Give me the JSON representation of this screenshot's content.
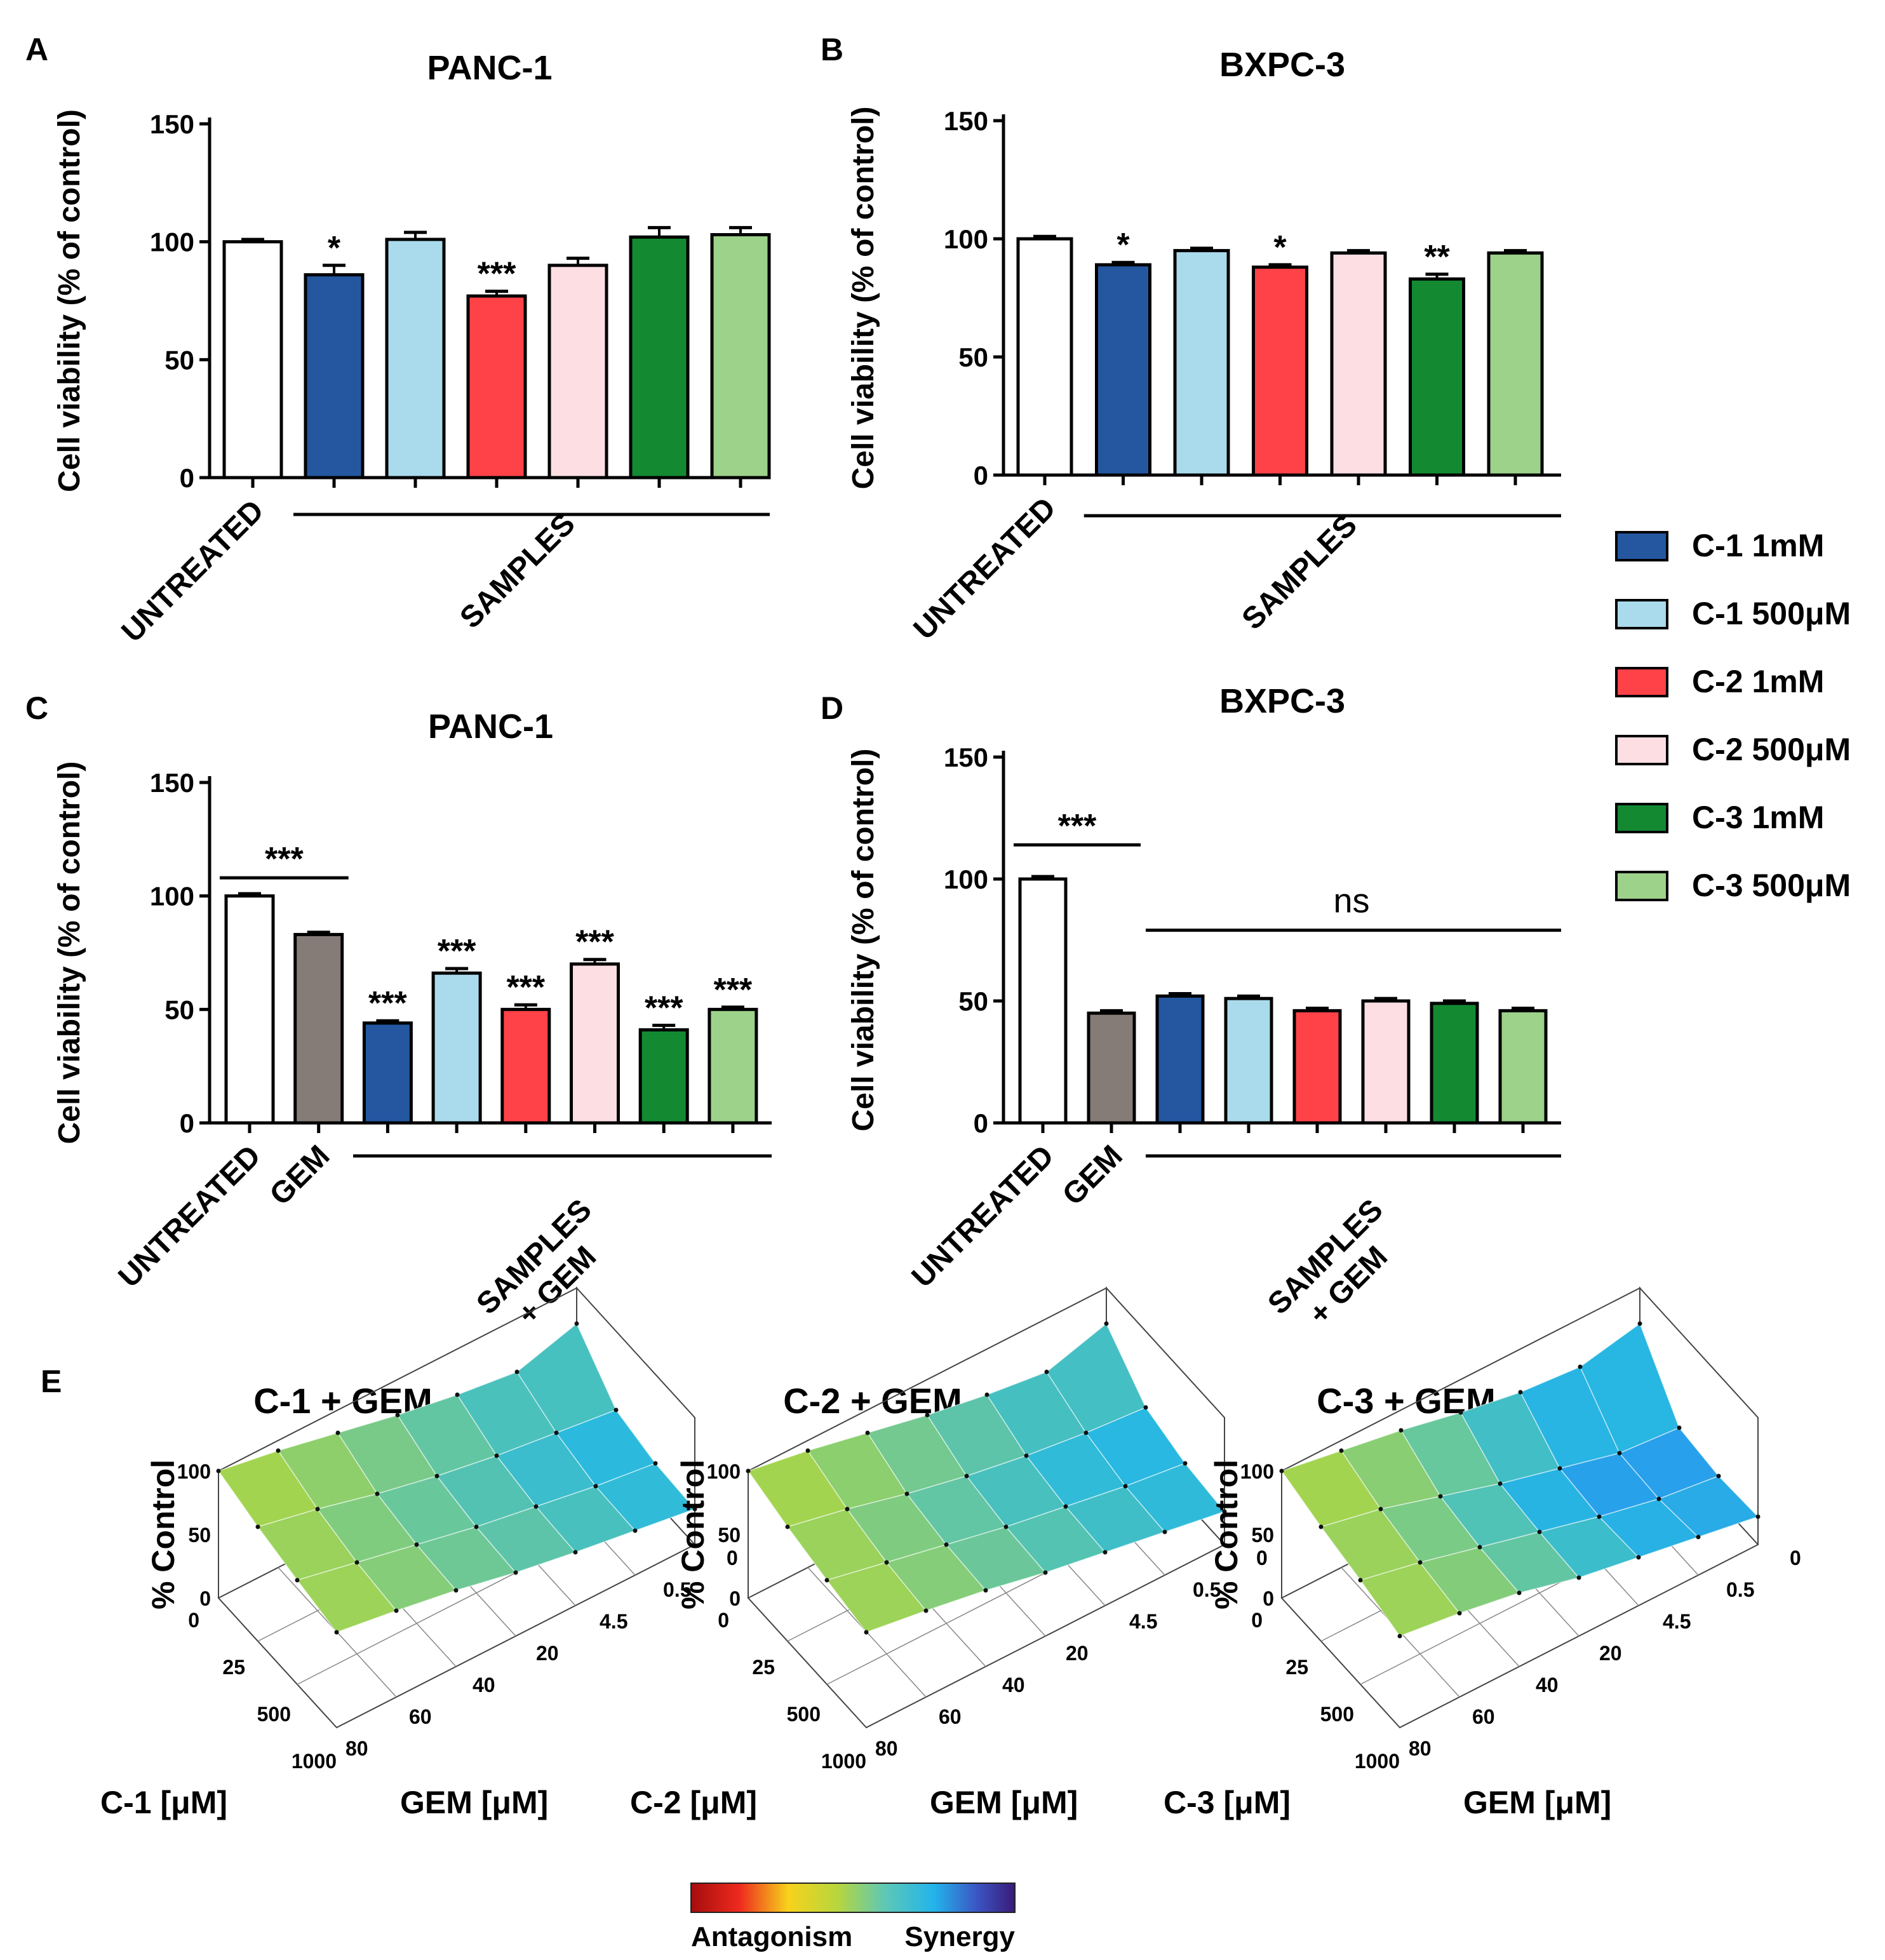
{
  "figure": {
    "legend": [
      {
        "label": "C-1 1mM",
        "color": "#2457a0"
      },
      {
        "label": "C-1 500μM",
        "color": "#aadbec"
      },
      {
        "label": "C-2 1mM",
        "color": "#ff4248"
      },
      {
        "label": "C-2 500μM",
        "color": "#fddfe3"
      },
      {
        "label": "C-3 1mM",
        "color": "#138a32"
      },
      {
        "label": "C-3 500μM",
        "color": "#9dd28a"
      }
    ],
    "colorbar": {
      "left_label": "Antagonism",
      "right_label": "Synergy"
    }
  },
  "chart_data": [
    {
      "panel": "A",
      "type": "bar",
      "title": "PANC-1",
      "ylabel": "Cell viability (% of control)",
      "ylim": [
        0,
        150
      ],
      "yticks": [
        "0",
        "50",
        "100",
        "150"
      ],
      "categories": [
        "UNTREATED",
        "C-1 1mM",
        "C-1 500μM",
        "C-2 1mM",
        "C-2 500μM",
        "C-3 1mM",
        "C-3 500μM"
      ],
      "values": [
        100,
        86,
        101,
        77,
        90,
        102,
        103
      ],
      "errors": [
        1,
        4,
        3,
        2,
        3,
        4,
        3
      ],
      "colors": [
        "#ffffff",
        "#2457a0",
        "#aadbec",
        "#ff4248",
        "#fddfe3",
        "#138a32",
        "#9dd28a"
      ],
      "significance": [
        "",
        "*",
        "",
        "***",
        "",
        "",
        ""
      ],
      "xlabels": [
        {
          "text": "UNTREATED",
          "bar": 0
        }
      ],
      "groups": [
        {
          "label": "SAMPLES",
          "from": 1,
          "to": 6,
          "sig": ""
        }
      ],
      "brackets": []
    },
    {
      "panel": "B",
      "type": "bar",
      "title": "BXPC-3",
      "ylabel": "Cell viability (% of control)",
      "ylim": [
        0,
        150
      ],
      "yticks": [
        "0",
        "50",
        "100",
        "150"
      ],
      "categories": [
        "UNTREATED",
        "C-1 1mM",
        "C-1 500μM",
        "C-2 1mM",
        "C-2 500μM",
        "C-3 1mM",
        "C-3 500μM"
      ],
      "values": [
        100,
        89,
        95,
        88,
        94,
        83,
        94
      ],
      "errors": [
        1,
        1,
        1,
        1,
        1,
        2,
        1
      ],
      "colors": [
        "#ffffff",
        "#2457a0",
        "#aadbec",
        "#ff4248",
        "#fddfe3",
        "#138a32",
        "#9dd28a"
      ],
      "significance": [
        "",
        "*",
        "",
        "*",
        "",
        "**",
        ""
      ],
      "xlabels": [
        {
          "text": "UNTREATED",
          "bar": 0
        }
      ],
      "groups": [
        {
          "label": "SAMPLES",
          "from": 1,
          "to": 6,
          "sig": ""
        }
      ],
      "brackets": []
    },
    {
      "panel": "C",
      "type": "bar",
      "title": "PANC-1",
      "ylabel": "Cell viability (% of control)",
      "ylim": [
        0,
        150
      ],
      "yticks": [
        "0",
        "50",
        "100",
        "150"
      ],
      "categories": [
        "UNTREATED",
        "GEM",
        "C-1 1mM + GEM",
        "C-1 500μM + GEM",
        "C-2 1mM + GEM",
        "C-2 500μM + GEM",
        "C-3 1mM + GEM",
        "C-3 500μM + GEM"
      ],
      "values": [
        100,
        83,
        44,
        66,
        50,
        70,
        41,
        50
      ],
      "errors": [
        1,
        1,
        1,
        2,
        2,
        2,
        2,
        1
      ],
      "colors": [
        "#ffffff",
        "#857c77",
        "#2457a0",
        "#aadbec",
        "#ff4248",
        "#fddfe3",
        "#138a32",
        "#9dd28a"
      ],
      "significance": [
        "",
        "",
        "***",
        "***",
        "***",
        "***",
        "***",
        "***"
      ],
      "xlabels": [
        {
          "text": "UNTREATED",
          "bar": 0
        },
        {
          "text": "GEM",
          "bar": 1
        }
      ],
      "groups": [
        {
          "label": "SAMPLES",
          "label2": "+ GEM",
          "from": 2,
          "to": 7,
          "sig": ""
        }
      ],
      "brackets": [
        {
          "from": 0,
          "to": 1,
          "value": 108,
          "sig": "***"
        }
      ]
    },
    {
      "panel": "D",
      "type": "bar",
      "title": "BXPC-3",
      "ylabel": "Cell viability (% of control)",
      "ylim": [
        0,
        150
      ],
      "yticks": [
        "0",
        "50",
        "100",
        "150"
      ],
      "categories": [
        "UNTREATED",
        "GEM",
        "C-1 1mM + GEM",
        "C-1 500μM + GEM",
        "C-2 1mM + GEM",
        "C-2 500μM + GEM",
        "C-3 1mM + GEM",
        "C-3 500μM + GEM"
      ],
      "values": [
        100,
        45,
        52,
        51,
        46,
        50,
        49,
        46
      ],
      "errors": [
        1,
        1,
        1,
        1,
        1,
        1,
        1,
        1
      ],
      "colors": [
        "#ffffff",
        "#857c77",
        "#2457a0",
        "#aadbec",
        "#ff4248",
        "#fddfe3",
        "#138a32",
        "#9dd28a"
      ],
      "significance": [
        "",
        "",
        "",
        "",
        "",
        "",
        "",
        ""
      ],
      "xlabels": [
        {
          "text": "UNTREATED",
          "bar": 0
        },
        {
          "text": "GEM",
          "bar": 1
        }
      ],
      "groups": [
        {
          "label": "SAMPLES",
          "label2": "+ GEM",
          "from": 2,
          "to": 7,
          "sig": ""
        }
      ],
      "brackets": [
        {
          "from": 0,
          "to": 1,
          "value": 114,
          "sig": "***"
        }
      ],
      "lines": [
        {
          "from": 2,
          "to": 7,
          "value": 79,
          "label": "ns"
        }
      ]
    },
    {
      "panel": "E",
      "type": "surface",
      "title": "C-1 + GEM",
      "zlabel": "% Control",
      "zticks": [
        "0",
        "50",
        "100"
      ],
      "xlabel": "C-1 [μM]",
      "xticks": [
        "0",
        "25",
        "500",
        "1000"
      ],
      "ylabel": "GEM [μM]",
      "yticks": [
        "80",
        "60",
        "40",
        "20",
        "4.5",
        "0.5",
        "0"
      ],
      "z": [
        [
          75,
          68,
          60,
          50,
          42,
          35,
          28
        ],
        [
          82,
          72,
          62,
          52,
          44,
          36,
          30
        ],
        [
          90,
          80,
          68,
          58,
          50,
          44,
          38
        ],
        [
          100,
          92,
          82,
          72,
          64,
          58,
          72
        ]
      ],
      "synergy": [
        [
          0.45,
          0.48,
          0.52,
          0.55,
          0.58,
          0.62,
          0.68
        ],
        [
          0.46,
          0.5,
          0.55,
          0.58,
          0.62,
          0.66,
          0.7
        ],
        [
          0.45,
          0.5,
          0.53,
          0.58,
          0.62,
          0.68,
          0.66
        ],
        [
          0.44,
          0.46,
          0.5,
          0.52,
          0.56,
          0.6,
          0.55
        ]
      ]
    },
    {
      "panel": "E",
      "type": "surface",
      "title": "C-2 + GEM",
      "zlabel": "% Control",
      "zticks": [
        "0",
        "50",
        "100"
      ],
      "xlabel": "C-2 [μM]",
      "xticks": [
        "0",
        "25",
        "500",
        "1000"
      ],
      "ylabel": "GEM [μM]",
      "yticks": [
        "80",
        "60",
        "40",
        "20",
        "4.5",
        "0.5",
        "0"
      ],
      "z": [
        [
          75,
          68,
          60,
          50,
          42,
          34,
          26
        ],
        [
          82,
          72,
          62,
          52,
          44,
          36,
          30
        ],
        [
          90,
          80,
          68,
          58,
          50,
          44,
          40
        ],
        [
          100,
          92,
          82,
          72,
          64,
          58,
          72
        ]
      ],
      "synergy": [
        [
          0.45,
          0.48,
          0.52,
          0.55,
          0.6,
          0.63,
          0.66
        ],
        [
          0.46,
          0.5,
          0.55,
          0.6,
          0.64,
          0.68,
          0.7
        ],
        [
          0.45,
          0.5,
          0.54,
          0.6,
          0.64,
          0.7,
          0.66
        ],
        [
          0.44,
          0.46,
          0.5,
          0.53,
          0.56,
          0.6,
          0.55
        ]
      ]
    },
    {
      "panel": "E",
      "type": "surface",
      "title": "C-3 + GEM",
      "zlabel": "% Control",
      "zticks": [
        "0",
        "50",
        "100"
      ],
      "xlabel": "C-3 [μM]",
      "xticks": [
        "0",
        "25",
        "500",
        "1000"
      ],
      "ylabel": "GEM [μM]",
      "yticks": [
        "80",
        "60",
        "40",
        "20",
        "4.5",
        "0.5",
        "0"
      ],
      "z": [
        [
          72,
          66,
          58,
          46,
          38,
          30,
          22
        ],
        [
          82,
          72,
          60,
          48,
          36,
          26,
          20
        ],
        [
          90,
          80,
          66,
          52,
          40,
          28,
          24
        ],
        [
          100,
          92,
          84,
          74,
          66,
          62,
          72
        ]
      ],
      "synergy": [
        [
          0.45,
          0.48,
          0.52,
          0.56,
          0.62,
          0.68,
          0.7
        ],
        [
          0.46,
          0.5,
          0.56,
          0.64,
          0.75,
          0.85,
          0.8
        ],
        [
          0.45,
          0.5,
          0.56,
          0.66,
          0.78,
          0.88,
          0.75
        ],
        [
          0.44,
          0.46,
          0.5,
          0.53,
          0.56,
          0.6,
          0.55
        ]
      ]
    }
  ]
}
